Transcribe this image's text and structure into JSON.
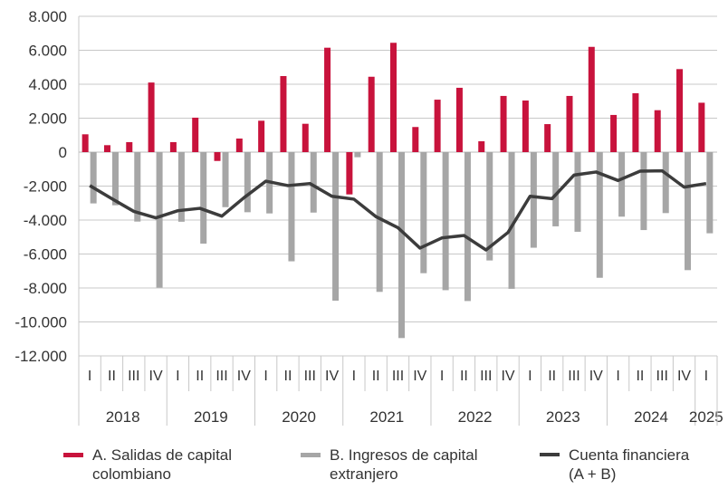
{
  "chart_data": {
    "type": "bar+line",
    "categories": [
      "I",
      "II",
      "III",
      "IV",
      "I",
      "II",
      "III",
      "IV",
      "I",
      "II",
      "III",
      "IV",
      "I",
      "II",
      "III",
      "IV",
      "I",
      "II",
      "III",
      "IV",
      "I",
      "II",
      "III",
      "IV",
      "I",
      "II",
      "III",
      "IV",
      "I"
    ],
    "years": [
      {
        "label": "2018",
        "quarters": 4
      },
      {
        "label": "2019",
        "quarters": 4
      },
      {
        "label": "2020",
        "quarters": 4
      },
      {
        "label": "2021",
        "quarters": 4
      },
      {
        "label": "2022",
        "quarters": 4
      },
      {
        "label": "2023",
        "quarters": 4
      },
      {
        "label": "2024",
        "quarters": 4
      },
      {
        "label": "2025",
        "quarters": 1
      }
    ],
    "ylim": [
      -12000,
      8000
    ],
    "yticks": [
      8000,
      6000,
      4000,
      2000,
      0,
      -2000,
      -4000,
      -6000,
      -8000,
      -10000,
      -12000
    ],
    "ytick_labels": [
      "8.000",
      "6.000",
      "4.000",
      "2.000",
      "0",
      "-2.000",
      "-4.000",
      "-6.000",
      "-8.000",
      "-10.000",
      "-12.000"
    ],
    "grid": true,
    "legend_position": "bottom",
    "series": [
      {
        "name": "A. Salidas de capital colombiano",
        "type": "bar",
        "color": "#c8133c",
        "values": [
          1050,
          410,
          590,
          4100,
          590,
          2030,
          -520,
          800,
          1850,
          4480,
          1670,
          6150,
          -2490,
          4440,
          6440,
          1480,
          3090,
          3790,
          640,
          3310,
          3040,
          1650,
          3310,
          6200,
          2190,
          3470,
          2470,
          4890,
          2910
        ]
      },
      {
        "name": "B. Ingresos de capital extranjero",
        "type": "bar",
        "color": "#a6a6a6",
        "values": [
          -3020,
          -3130,
          -4090,
          -7980,
          -4100,
          -5390,
          -3240,
          -3540,
          -3610,
          -6430,
          -3560,
          -8750,
          -300,
          -8230,
          -10950,
          -7130,
          -8130,
          -8770,
          -6380,
          -8050,
          -5630,
          -4370,
          -4690,
          -7400,
          -3800,
          -4590,
          -3590,
          -6950,
          -4780
        ]
      },
      {
        "name": "Cuenta financiera (A + B)",
        "type": "line",
        "color": "#3c3c3c",
        "values": [
          -1970,
          -2740,
          -3490,
          -3870,
          -3450,
          -3310,
          -3770,
          -2690,
          -1710,
          -1970,
          -1850,
          -2600,
          -2770,
          -3800,
          -4450,
          -5650,
          -5050,
          -4910,
          -5760,
          -4730,
          -2600,
          -2740,
          -1350,
          -1170,
          -1670,
          -1120,
          -1100,
          -2060,
          -1850
        ]
      }
    ]
  },
  "legend": {
    "a_line1": "A. Salidas de capital",
    "a_line2": "colombiano",
    "b_line1": "B. Ingresos de capital",
    "b_line2": "extranjero",
    "c_line1": "Cuenta financiera",
    "c_line2": "(A + B)"
  }
}
